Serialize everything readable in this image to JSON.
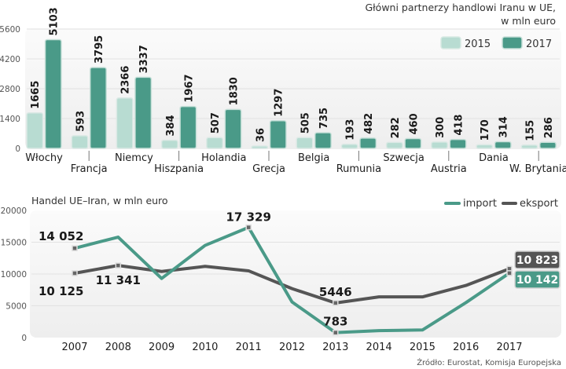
{
  "chart_data": [
    {
      "type": "bar",
      "title": "Główni partnerzy handlowi Iranu w UE,",
      "subtitle": "w mln euro",
      "categories": [
        "Włochy",
        "Francja",
        "Niemcy",
        "Hiszpania",
        "Holandia",
        "Grecja",
        "Belgia",
        "Rumunia",
        "Szwecja",
        "Austria",
        "Dania",
        "W. Brytania"
      ],
      "series": [
        {
          "name": "2015",
          "color": "#b8dcd2",
          "values": [
            1665,
            593,
            2366,
            384,
            507,
            36,
            505,
            193,
            282,
            300,
            170,
            155
          ]
        },
        {
          "name": "2017",
          "color": "#4a9a88",
          "values": [
            5103,
            3795,
            3337,
            1967,
            1830,
            1297,
            735,
            482,
            460,
            418,
            314,
            286
          ]
        }
      ],
      "value_labels": {
        "2015": [
          "1665",
          "593",
          "2366",
          "384",
          "507",
          "36",
          "505",
          "193",
          "282",
          "300",
          "170",
          "155"
        ],
        "2017": [
          "5103",
          "3795",
          "3337",
          "1967",
          "1830",
          "1297",
          "735",
          "482",
          "460",
          "418",
          "314",
          "286"
        ]
      },
      "yticks": [
        "0",
        "1400",
        "2800",
        "4200",
        "5600"
      ],
      "ytick_values": [
        0,
        1400,
        2800,
        4200,
        5600
      ],
      "ylim": [
        0,
        5600
      ],
      "xlabel": "",
      "ylabel": "",
      "grid": true,
      "legend": "top-right"
    },
    {
      "type": "line",
      "title": "Handel UE–Iran, w mln euro",
      "x": [
        "2007",
        "2008",
        "2009",
        "2010",
        "2011",
        "2012",
        "2013",
        "2014",
        "2015",
        "2016",
        "2017"
      ],
      "series": [
        {
          "name": "import",
          "color": "#4a9a88",
          "values": [
            14052,
            15800,
            9300,
            14500,
            17329,
            5600,
            783,
            1100,
            1200,
            5500,
            10142
          ]
        },
        {
          "name": "eksport",
          "color": "#555555",
          "values": [
            10125,
            11341,
            10400,
            11200,
            10500,
            7700,
            5446,
            6400,
            6400,
            8200,
            10823
          ]
        }
      ],
      "annotations": [
        {
          "series": "import",
          "x": "2007",
          "text": "14 052"
        },
        {
          "series": "eksport",
          "x": "2007",
          "text": "10 125"
        },
        {
          "series": "eksport",
          "x": "2008",
          "text": "11 341"
        },
        {
          "series": "import",
          "x": "2011",
          "text": "17 329"
        },
        {
          "series": "eksport",
          "x": "2013",
          "text": "5446"
        },
        {
          "series": "import",
          "x": "2013",
          "text": "783"
        },
        {
          "series": "eksport",
          "x": "2017",
          "text": "10 823",
          "boxed": true
        },
        {
          "series": "import",
          "x": "2017",
          "text": "10 142",
          "boxed": true
        }
      ],
      "yticks": [
        "0",
        "5000",
        "10000",
        "15000",
        "20000"
      ],
      "ytick_values": [
        0,
        5000,
        10000,
        15000,
        20000
      ],
      "ylim": [
        0,
        20000
      ],
      "xlabel": "",
      "ylabel": "",
      "grid": true,
      "legend": "top-right"
    }
  ],
  "source": "Źródło: Eurostat, Komisja Europejska"
}
